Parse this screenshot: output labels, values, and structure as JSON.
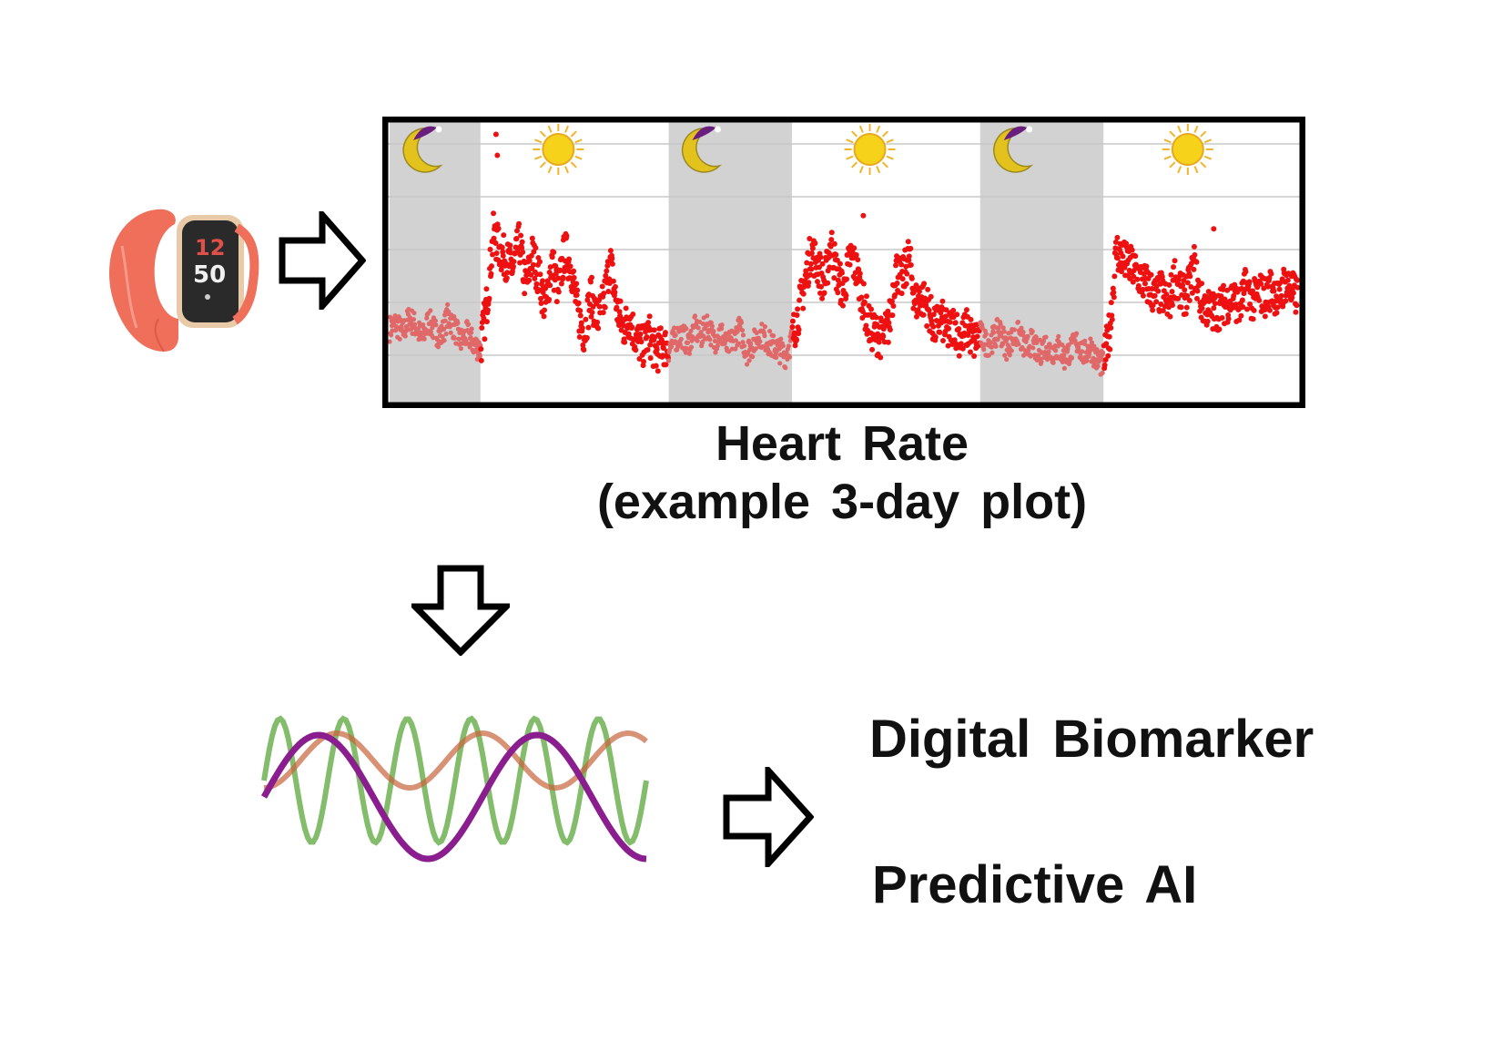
{
  "chart_data": {
    "type": "scatter",
    "title": "Heart Rate",
    "subtitle": "(example 3-day plot)",
    "xlabel": "",
    "ylabel": "",
    "x_unit": "hours",
    "xlim": [
      0,
      70
    ],
    "ylim": [
      40,
      140
    ],
    "grid": true,
    "night_periods": [
      {
        "start": 0,
        "end": 7,
        "icon": "moon-icon"
      },
      {
        "start": 21.5,
        "end": 31,
        "icon": "moon-icon"
      },
      {
        "start": 45.5,
        "end": 55,
        "icon": "moon-icon"
      }
    ],
    "day_icon_positions": [
      13,
      37,
      61.5
    ],
    "night_color": "#d2d2d2",
    "night_point_color": "#e06868",
    "day_point_color": "#ee1111",
    "series": [
      {
        "name": "heart rate",
        "x": [
          0,
          0.5,
          1,
          1.5,
          2,
          2.5,
          3,
          3.5,
          4,
          4.5,
          5,
          5.5,
          6,
          6.5,
          7,
          7.5,
          8,
          8.5,
          9,
          9.5,
          10,
          10.5,
          11,
          11.5,
          12,
          12.5,
          13,
          13.5,
          14,
          14.5,
          15,
          15.5,
          16,
          16.5,
          17,
          17.5,
          18,
          18.5,
          19,
          19.5,
          20,
          20.5,
          21,
          21.5,
          22,
          22.5,
          23,
          23.5,
          24,
          24.5,
          25,
          25.5,
          26,
          26.5,
          27,
          27.5,
          28,
          28.5,
          29,
          29.5,
          30,
          30.5,
          31,
          31.5,
          32,
          32.5,
          33,
          33.5,
          34,
          34.5,
          35,
          35.5,
          36,
          36.5,
          37,
          37.5,
          38,
          38.5,
          39,
          39.5,
          40,
          40.5,
          41,
          41.5,
          42,
          42.5,
          43,
          43.5,
          44,
          44.5,
          45,
          45.5,
          46,
          46.5,
          47,
          47.5,
          48,
          48.5,
          49,
          49.5,
          50,
          50.5,
          51,
          51.5,
          52,
          52.5,
          53,
          53.5,
          54,
          54.5,
          55,
          55.5,
          56,
          56.5,
          57,
          57.5,
          58,
          58.5,
          59,
          59.5,
          60,
          60.5,
          61,
          61.5,
          62,
          62.5,
          63,
          63.5,
          64,
          64.5,
          65,
          65.5,
          66,
          66.5,
          67,
          67.5,
          68,
          68.5,
          69,
          69.5,
          70
        ],
        "y": [
          62,
          64,
          60,
          66,
          63,
          58,
          65,
          61,
          59,
          67,
          62,
          57,
          60,
          56,
          54,
          72,
          98,
          92,
          88,
          85,
          95,
          78,
          90,
          82,
          70,
          88,
          76,
          92,
          85,
          68,
          60,
          75,
          65,
          72,
          88,
          70,
          62,
          66,
          58,
          55,
          60,
          52,
          56,
          54,
          58,
          60,
          56,
          62,
          59,
          64,
          57,
          61,
          55,
          58,
          62,
          53,
          56,
          60,
          58,
          55,
          54,
          52,
          58,
          68,
          80,
          92,
          86,
          78,
          95,
          82,
          76,
          90,
          84,
          72,
          62,
          60,
          58,
          64,
          85,
          80,
          90,
          72,
          74,
          70,
          62,
          66,
          60,
          64,
          58,
          62,
          57,
          60,
          56,
          58,
          62,
          55,
          58,
          60,
          54,
          57,
          52,
          56,
          53,
          55,
          51,
          54,
          57,
          52,
          55,
          50,
          48,
          62,
          92,
          88,
          86,
          84,
          80,
          78,
          74,
          76,
          70,
          82,
          74,
          76,
          86,
          72,
          70,
          68,
          70,
          72,
          74,
          70,
          78,
          72,
          76,
          74,
          78,
          72,
          80,
          76,
          74
        ]
      }
    ]
  },
  "icons": [
    "smartwatch-icon",
    "arrow-right-icon",
    "arrow-down-icon",
    "sine-waves-icon"
  ],
  "waves": {
    "colors": {
      "green": "#5aa63a",
      "orange": "#c8643a",
      "purple": "#8a1e8e"
    }
  },
  "outputs": {
    "biomarker": "Digital Biomarker",
    "predictive": "Predictive AI"
  }
}
